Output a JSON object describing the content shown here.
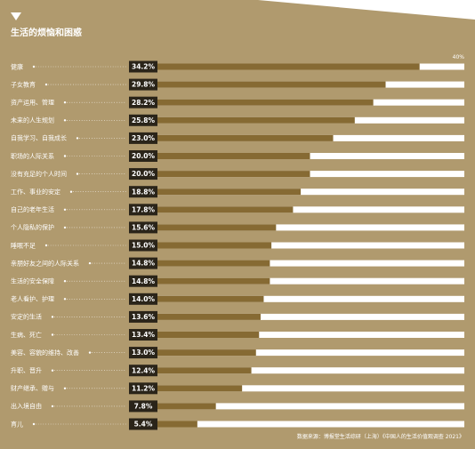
{
  "title": "生活的烦恼和困惑",
  "colors": {
    "background": "#b09a6e",
    "bar_fill": "#866a33",
    "track": "#ffffff",
    "label_box": "#2a2419",
    "text": "#ffffff"
  },
  "source": "数据来源：博报堂生活综研（上海）《中国人的生活价值观调查 2021》",
  "chart_data": {
    "type": "bar",
    "orientation": "horizontal",
    "xlim": [
      0,
      40
    ],
    "axis_max_label": "40%",
    "categories": [
      "健康",
      "子女教育",
      "资产运用、管理",
      "未来的人生规划",
      "自我学习、自我成长",
      "职场的人际关系",
      "没有充足的个人时间",
      "工作、事业的安定",
      "自己的老年生活",
      "个人隐私的保护",
      "睡眠不足",
      "亲朋好友之间的人际关系",
      "生活的安全保障",
      "老人看护、护理",
      "安定的生活",
      "生病、死亡",
      "美容、容貌的维持、改善",
      "升职、晋升",
      "财产继承、赠与",
      "出入境自由",
      "育儿"
    ],
    "values": [
      34.2,
      29.8,
      28.2,
      25.8,
      23.0,
      20.0,
      20.0,
      18.8,
      17.8,
      15.6,
      15.0,
      14.8,
      14.8,
      14.0,
      13.6,
      13.4,
      13.0,
      12.4,
      11.2,
      7.8,
      5.4
    ],
    "value_labels": [
      "34.2%",
      "29.8%",
      "28.2%",
      "25.8%",
      "23.0%",
      "20.0%",
      "20.0%",
      "18.8%",
      "17.8%",
      "15.6%",
      "15.0%",
      "14.8%",
      "14.8%",
      "14.0%",
      "13.6%",
      "13.4%",
      "13.0%",
      "12.4%",
      "11.2%",
      "7.8%",
      "5.4%"
    ]
  }
}
